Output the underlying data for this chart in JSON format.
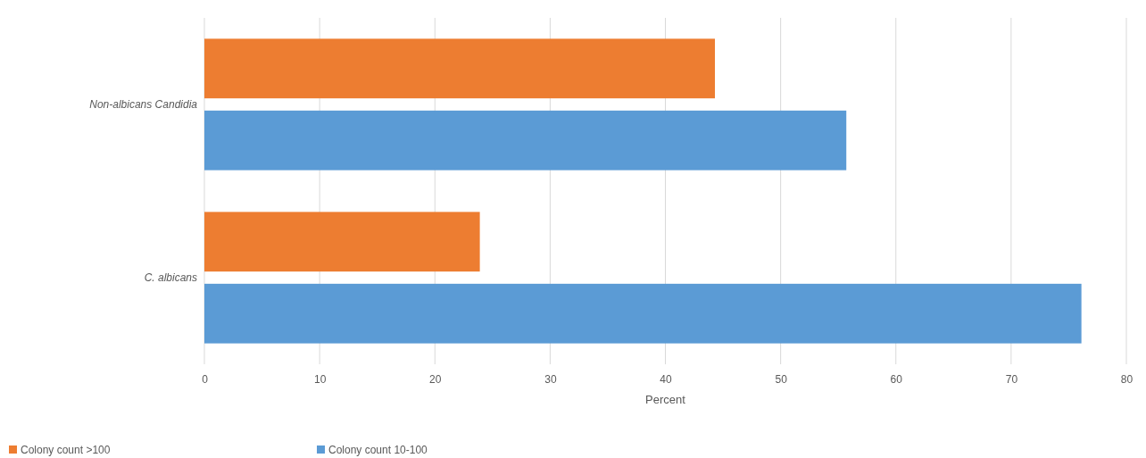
{
  "chart_data": {
    "type": "bar",
    "orientation": "horizontal",
    "categories": [
      "Non-albicans Candidia",
      "C. albicans"
    ],
    "series": [
      {
        "name": "Colony count >100",
        "color": "#ed7d31",
        "values": [
          44.3,
          23.9
        ]
      },
      {
        "name": "Colony count 10-100",
        "color": "#5b9bd5",
        "values": [
          55.7,
          76.1
        ]
      }
    ],
    "xlabel": "Percent",
    "xlim": [
      0,
      80
    ],
    "xticks": [
      0,
      10,
      20,
      30,
      40,
      50,
      60,
      70,
      80
    ],
    "grid": "x",
    "legend": "bottom left"
  }
}
